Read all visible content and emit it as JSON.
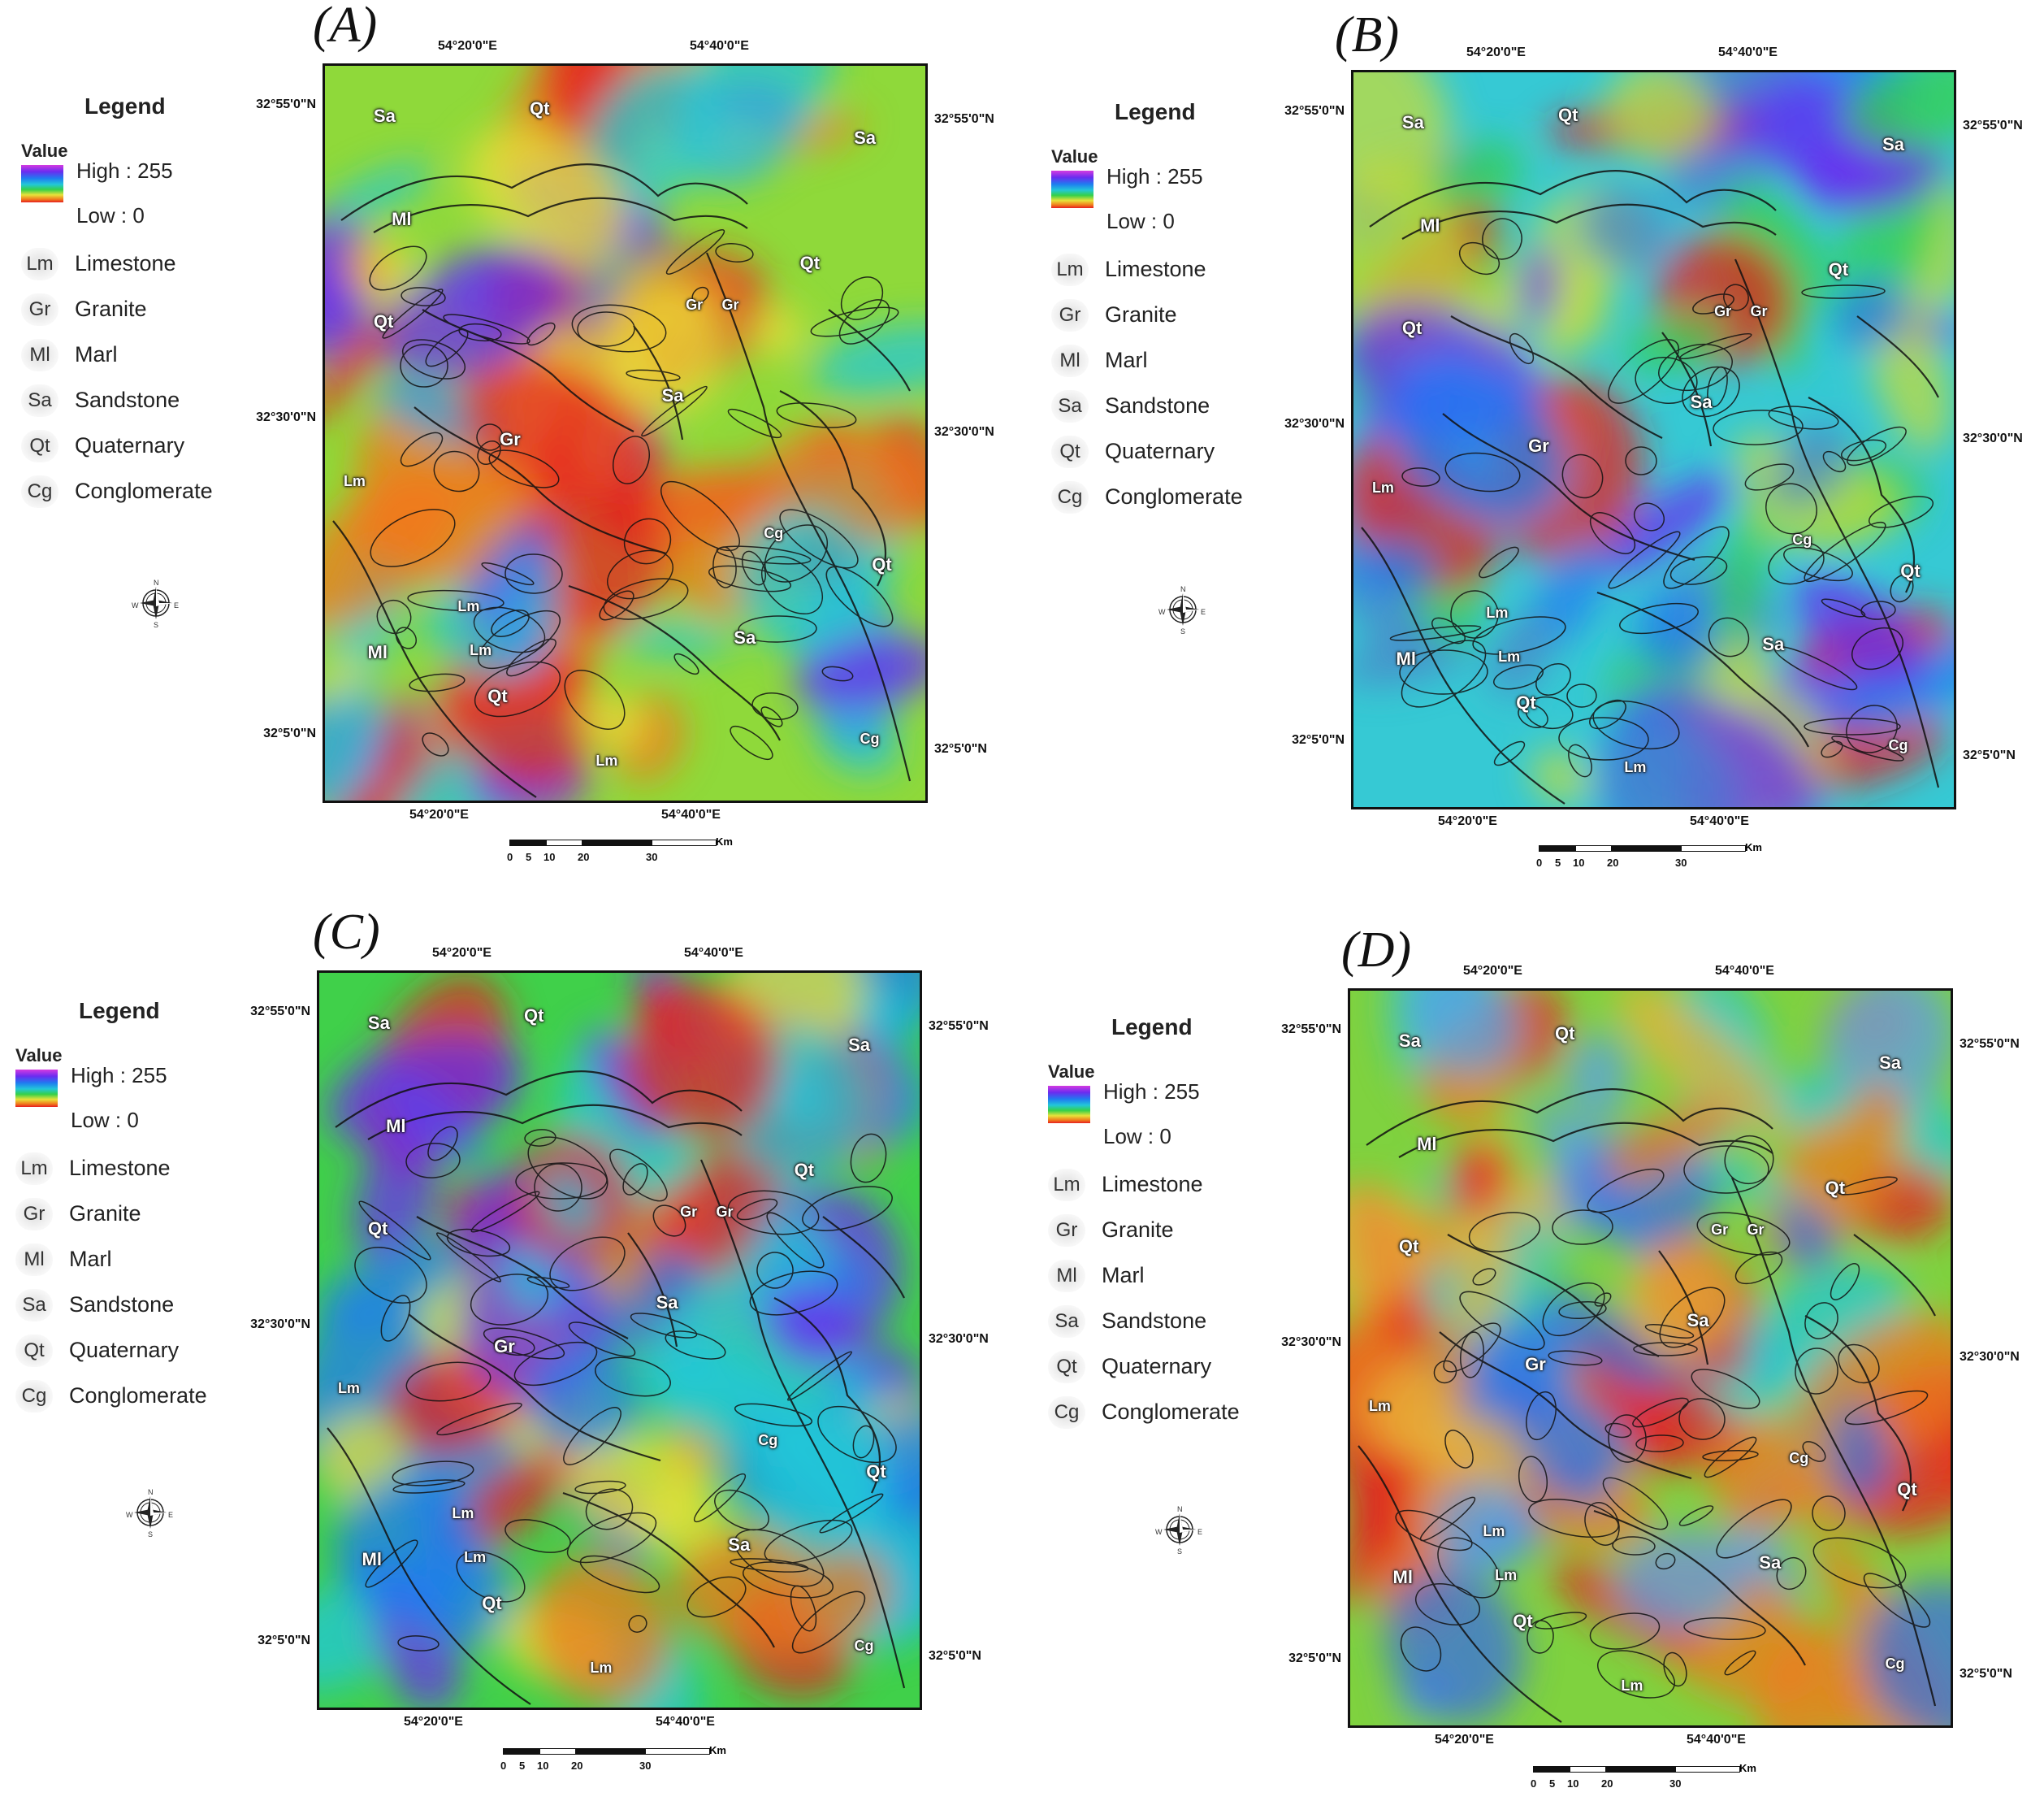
{
  "panels": [
    {
      "label": "(A)"
    },
    {
      "label": "(B)"
    },
    {
      "label": "(C)"
    },
    {
      "label": "(D)"
    }
  ],
  "legend": {
    "title": "Legend",
    "value_label": "Value",
    "high": "High : 255",
    "low": "Low : 0",
    "ramp_colors": [
      "#d63be0",
      "#6a2cf0",
      "#1f7cf0",
      "#22c7d8",
      "#35d04a",
      "#e8e23a",
      "#f07a1c",
      "#e61f1f"
    ],
    "items": [
      {
        "code": "Lm",
        "name": "Limestone"
      },
      {
        "code": "Gr",
        "name": "Granite"
      },
      {
        "code": "Ml",
        "name": "Marl"
      },
      {
        "code": "Sa",
        "name": "Sandstone"
      },
      {
        "code": "Qt",
        "name": "Quaternary"
      },
      {
        "code": "Cg",
        "name": "Conglomerate"
      }
    ]
  },
  "axes": {
    "lon_top": [
      "54°20'0\"E",
      "54°40'0\"E"
    ],
    "lon_bottom": [
      "54°20'0\"E",
      "54°40'0\"E"
    ],
    "lat_left": [
      "32°55'0\"N",
      "32°30'0\"N",
      "32°5'0\"N"
    ],
    "lat_right": [
      "32°55'0\"N",
      "32°30'0\"N",
      "32°5'0\"N"
    ]
  },
  "scale_bar": {
    "ticks": [
      "0",
      "5",
      "10",
      "20",
      "30"
    ],
    "unit": "Km"
  },
  "compass": {
    "icon": "north-arrow-compass-icon",
    "letters": [
      "N",
      "E",
      "S",
      "W"
    ]
  },
  "map_labels": [
    "Sa",
    "Qt",
    "Sa",
    "Ml",
    "Qt",
    "Qt",
    "Gr",
    "Gr",
    "Sa",
    "Gr",
    "Lm",
    "Cg",
    "Qt",
    "Lm",
    "Lm",
    "Ml",
    "Qt",
    "Sa",
    "Lm",
    "Cg"
  ],
  "panel_palettes": {
    "A": {
      "base": "#8fd93a",
      "colors": [
        "#e8e23a",
        "#f07a1c",
        "#e61f1f",
        "#2a9df0",
        "#6a2cf0",
        "#22c7d8"
      ]
    },
    "B": {
      "base": "#36c9d4",
      "colors": [
        "#35d04a",
        "#1f7cf0",
        "#6a2cf0",
        "#e61f1f",
        "#4b86c8",
        "#c6dc3a"
      ]
    },
    "C": {
      "base": "#40d04a",
      "colors": [
        "#1f7cf0",
        "#6a2cf0",
        "#e61f1f",
        "#e8e23a",
        "#22c7d8",
        "#f07a1c"
      ]
    },
    "D": {
      "base": "#7fd23f",
      "colors": [
        "#e8b23a",
        "#f07a1c",
        "#3a6fe0",
        "#22c7d8",
        "#e61f1f",
        "#5aa0e8"
      ]
    }
  }
}
